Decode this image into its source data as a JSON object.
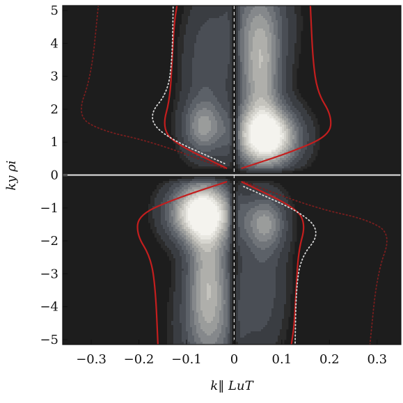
{
  "chart_data": {
    "type": "heatmap",
    "title": "",
    "xlabel": "k‖ LuT",
    "ylabel": "ky ρi",
    "xlim": [
      -0.36,
      0.35
    ],
    "ylim": [
      -5.15,
      5.15
    ],
    "x_ticks": [
      -0.3,
      -0.2,
      -0.1,
      0,
      0.1,
      0.2,
      0.3
    ],
    "x_tick_labels": [
      "−0.3",
      "−0.2",
      "−0.1",
      "0",
      "0.1",
      "0.2",
      "0.3"
    ],
    "y_ticks": [
      5,
      4,
      3,
      2,
      1,
      0,
      -1,
      -2,
      -3,
      -4,
      -5
    ],
    "y_tick_labels": [
      "5",
      "4",
      "3",
      "2",
      "1",
      "0",
      "−1",
      "−2",
      "−3",
      "−4",
      "−5"
    ],
    "grid": false,
    "legend": "none",
    "background_color": "#1d1d1d",
    "contour_fill_colors": [
      "#2b2b2b",
      "#3a3d42",
      "#4a4e55",
      "#5c6168",
      "#707479",
      "#85888b",
      "#9a9c9b",
      "#afafab",
      "#c4c3bd",
      "#d6d5cf",
      "#e8e7e1",
      "#f4f3ee"
    ],
    "contour_line_color": "#4a4a4a",
    "boundary_color": "#c41e1e",
    "dotted_white_color": "#d8d8d8",
    "dotted_red_color": "#7a1e1e",
    "reference_lines": [
      {
        "orientation": "horizontal",
        "value": 0,
        "style": "solid",
        "color": "#e6e6e6"
      },
      {
        "orientation": "vertical",
        "value": 0,
        "style": "dashed",
        "color": "#e6e6e6"
      }
    ],
    "contour_lobes": [
      {
        "position": "upper",
        "peak": [
          0.07,
          1.1
        ],
        "levels": 12
      },
      {
        "position": "upper-secondary",
        "peak": [
          -0.06,
          1.4
        ],
        "levels": 5
      },
      {
        "position": "lower",
        "peak": [
          -0.07,
          -1.1
        ],
        "levels": 12
      },
      {
        "position": "lower-secondary",
        "peak": [
          0.06,
          -1.4
        ],
        "levels": 5
      }
    ],
    "boundary_curves": [
      {
        "kind": "solid-red",
        "points": [
          [
            -0.015,
            0.2
          ],
          [
            -0.13,
            1.0
          ],
          [
            -0.15,
            1.5
          ],
          [
            -0.135,
            2.3
          ],
          [
            -0.13,
            3.5
          ],
          [
            -0.126,
            4.6
          ],
          [
            -0.12,
            5.15
          ]
        ]
      },
      {
        "kind": "solid-red",
        "points": [
          [
            0.015,
            0.2
          ],
          [
            0.12,
            0.7
          ],
          [
            0.2,
            1.2
          ],
          [
            0.205,
            1.8
          ],
          [
            0.175,
            2.5
          ],
          [
            0.165,
            3.5
          ],
          [
            0.16,
            5.15
          ]
        ]
      },
      {
        "kind": "solid-red",
        "points": [
          [
            0.015,
            -0.2
          ],
          [
            0.13,
            -1.0
          ],
          [
            0.15,
            -1.5
          ],
          [
            0.135,
            -2.3
          ],
          [
            0.13,
            -3.5
          ],
          [
            0.126,
            -4.6
          ],
          [
            0.12,
            -5.15
          ]
        ]
      },
      {
        "kind": "solid-red",
        "points": [
          [
            -0.015,
            -0.2
          ],
          [
            -0.12,
            -0.7
          ],
          [
            -0.2,
            -1.2
          ],
          [
            -0.205,
            -1.8
          ],
          [
            -0.175,
            -2.5
          ],
          [
            -0.165,
            -3.5
          ],
          [
            -0.16,
            -5.15
          ]
        ]
      },
      {
        "kind": "dotted-white",
        "points": [
          [
            -0.02,
            0.35
          ],
          [
            -0.15,
            1.2
          ],
          [
            -0.18,
            1.8
          ],
          [
            -0.14,
            2.5
          ],
          [
            -0.13,
            3.5
          ],
          [
            -0.128,
            5.15
          ]
        ]
      },
      {
        "kind": "dotted-white",
        "points": [
          [
            0.02,
            -0.35
          ],
          [
            0.15,
            -1.2
          ],
          [
            0.18,
            -1.8
          ],
          [
            0.14,
            -2.5
          ],
          [
            0.13,
            -3.5
          ],
          [
            0.128,
            -5.15
          ]
        ]
      },
      {
        "kind": "dotted-red",
        "points": [
          [
            -0.02,
            0.2
          ],
          [
            -0.17,
            1.0
          ],
          [
            -0.28,
            1.35
          ],
          [
            -0.33,
            1.8
          ],
          [
            -0.3,
            3.0
          ],
          [
            -0.285,
            5.15
          ]
        ]
      },
      {
        "kind": "dotted-red",
        "points": [
          [
            0.02,
            -0.2
          ],
          [
            0.17,
            -1.0
          ],
          [
            0.28,
            -1.35
          ],
          [
            0.33,
            -1.8
          ],
          [
            0.3,
            -3.0
          ],
          [
            0.285,
            -5.15
          ]
        ]
      }
    ]
  }
}
